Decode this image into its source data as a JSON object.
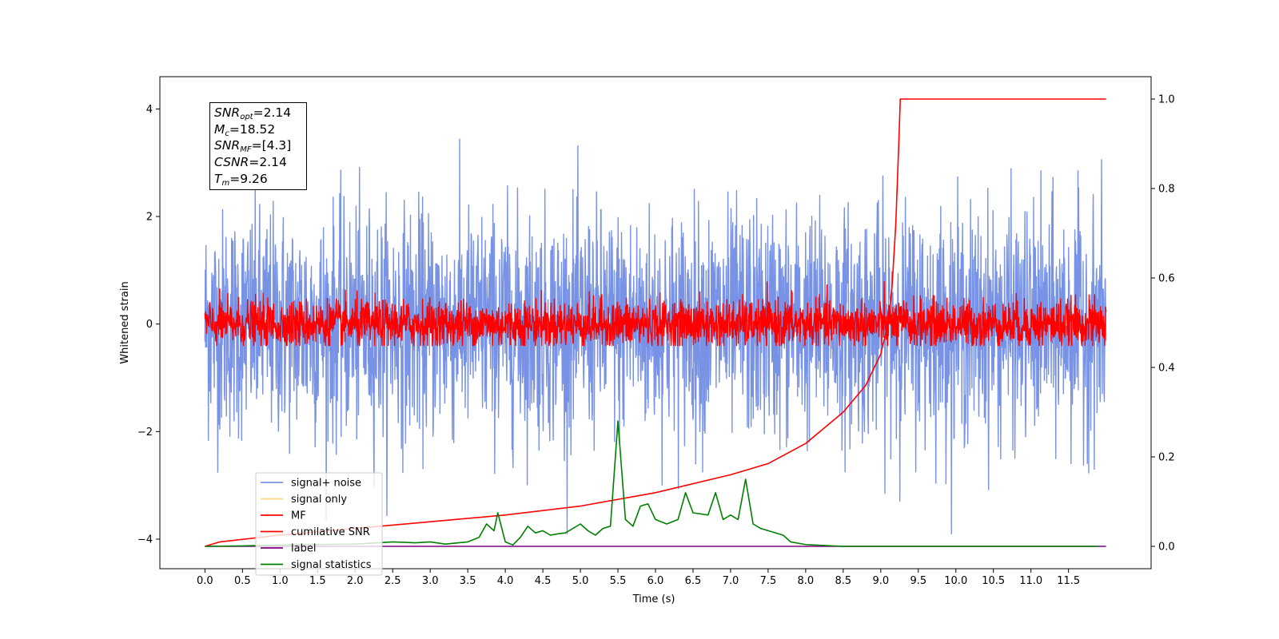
{
  "chart_data": {
    "type": "line",
    "xlabel": "Time (s)",
    "ylabel": "Whitened strain",
    "xlim": [
      -0.6,
      12.6
    ],
    "ylim": [
      -4.55,
      4.6
    ],
    "y2lim": [
      -0.05,
      1.05
    ],
    "x_ticks": [
      "0.0",
      "0.5",
      "1.0",
      "1.5",
      "2.0",
      "2.5",
      "3.0",
      "3.5",
      "4.0",
      "4.5",
      "5.0",
      "5.5",
      "6.0",
      "6.5",
      "7.0",
      "7.5",
      "8.0",
      "8.5",
      "9.0",
      "9.5",
      "10.0",
      "10.5",
      "11.0",
      "11.5"
    ],
    "y_ticks": [
      "4",
      "2",
      "0",
      "−2",
      "−4"
    ],
    "y2_ticks": [
      "1.0",
      "0.8",
      "0.6",
      "0.4",
      "0.2",
      "0.0"
    ],
    "annotation": [
      {
        "sym": "SNR",
        "sub": "opt",
        "val": "=2.14"
      },
      {
        "sym": "M",
        "sub": "c",
        "val": "=18.52"
      },
      {
        "sym": "SNR",
        "sub": "MF",
        "val": "=[4.3]"
      },
      {
        "sym": "CSNR",
        "sub": "",
        "val": "=2.14"
      },
      {
        "sym": "T",
        "sub": "m",
        "val": "=9.26"
      }
    ],
    "series": [
      {
        "name": "signal+ noise",
        "axis": "left",
        "color": "#7893e6",
        "x_range": [
          0.0,
          12.0
        ],
        "amplitude_range": [
          -3.9,
          4.15
        ]
      },
      {
        "name": "signal only",
        "axis": "left",
        "color": "#ffd580",
        "values": []
      },
      {
        "name": "MF",
        "axis": "left",
        "color": "#ff0000",
        "x_range": [
          0.0,
          12.0
        ],
        "amplitude_range": [
          -0.4,
          1.0
        ]
      },
      {
        "name": "cumilative SNR",
        "axis": "right",
        "color": "#ff0000",
        "x": [
          0.0,
          0.2,
          1.0,
          2.0,
          3.0,
          4.0,
          5.0,
          6.0,
          7.0,
          7.5,
          8.0,
          8.5,
          8.8,
          9.0,
          9.1,
          9.15,
          9.2,
          9.24,
          9.26,
          12.0
        ],
        "values": [
          0.0,
          0.01,
          0.025,
          0.04,
          0.055,
          0.07,
          0.09,
          0.12,
          0.16,
          0.185,
          0.23,
          0.3,
          0.36,
          0.43,
          0.5,
          0.58,
          0.72,
          0.9,
          1.0,
          1.0
        ]
      },
      {
        "name": "label",
        "axis": "right",
        "color": "#800080",
        "x": [
          0.0,
          12.0
        ],
        "values": [
          0.0,
          0.0
        ]
      },
      {
        "name": "signal statistics",
        "axis": "right",
        "color": "#008000",
        "x": [
          0.0,
          0.5,
          1.0,
          1.5,
          2.0,
          2.3,
          2.5,
          2.8,
          3.0,
          3.2,
          3.5,
          3.65,
          3.75,
          3.85,
          3.9,
          4.0,
          4.1,
          4.2,
          4.3,
          4.4,
          4.5,
          4.6,
          4.7,
          4.8,
          5.0,
          5.1,
          5.2,
          5.3,
          5.4,
          5.5,
          5.6,
          5.7,
          5.8,
          5.9,
          6.0,
          6.15,
          6.3,
          6.4,
          6.5,
          6.7,
          6.8,
          6.9,
          7.0,
          7.1,
          7.2,
          7.3,
          7.4,
          7.5,
          7.7,
          7.8,
          8.0,
          8.5,
          9.0,
          10.0,
          11.0,
          11.9
        ],
        "values": [
          0.0,
          0.001,
          0.003,
          0.004,
          0.005,
          0.008,
          0.01,
          0.008,
          0.01,
          0.005,
          0.01,
          0.02,
          0.05,
          0.035,
          0.075,
          0.01,
          0.003,
          0.02,
          0.045,
          0.03,
          0.035,
          0.025,
          0.028,
          0.03,
          0.05,
          0.035,
          0.025,
          0.04,
          0.045,
          0.28,
          0.06,
          0.045,
          0.09,
          0.095,
          0.06,
          0.05,
          0.06,
          0.12,
          0.075,
          0.07,
          0.12,
          0.06,
          0.07,
          0.06,
          0.15,
          0.05,
          0.04,
          0.035,
          0.025,
          0.01,
          0.004,
          0.0,
          0.0,
          0.0,
          0.0,
          0.0
        ]
      }
    ]
  }
}
